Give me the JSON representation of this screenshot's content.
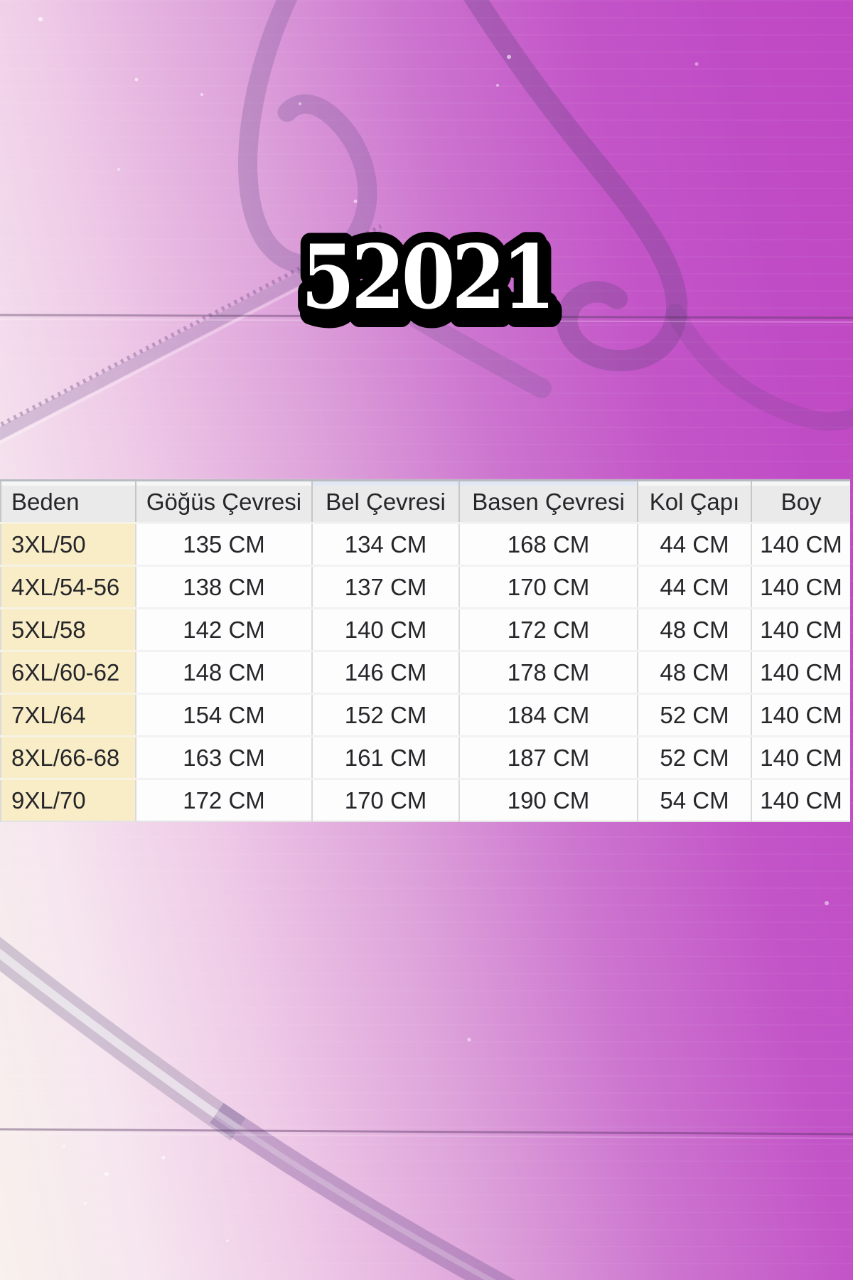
{
  "product_code": "52021",
  "size_table": {
    "columns": [
      "Beden",
      "Göğüs Çevresi",
      "Bel Çevresi",
      "Basen Çevresi",
      "Kol Çapı",
      "Boy"
    ],
    "rows": [
      [
        "3XL/50",
        "135 CM",
        "134 CM",
        "168 CM",
        "44 CM",
        "140 CM"
      ],
      [
        "4XL/54-56",
        "138 CM",
        "137 CM",
        "170 CM",
        "44 CM",
        "140 CM"
      ],
      [
        "5XL/58",
        "142 CM",
        "140 CM",
        "172 CM",
        "48 CM",
        "140 CM"
      ],
      [
        "6XL/60-62",
        "148 CM",
        "146 CM",
        "178 CM",
        "48 CM",
        "140 CM"
      ],
      [
        "7XL/64",
        "154 CM",
        "152 CM",
        "184 CM",
        "52 CM",
        "140 CM"
      ],
      [
        "8XL/66-68",
        "163 CM",
        "161 CM",
        "187 CM",
        "52 CM",
        "140 CM"
      ],
      [
        "9XL/70",
        "172 CM",
        "170 CM",
        "190 CM",
        "54 CM",
        "140 CM"
      ]
    ]
  },
  "colors": {
    "background_magenta": "#c04cc5",
    "background_light": "#f8f1ec",
    "size_column_cream": "#f8edc7",
    "header_gray": "#eaeaea",
    "table_text": "#26262a",
    "code_fill": "#ffffff",
    "code_outline": "#000000"
  }
}
